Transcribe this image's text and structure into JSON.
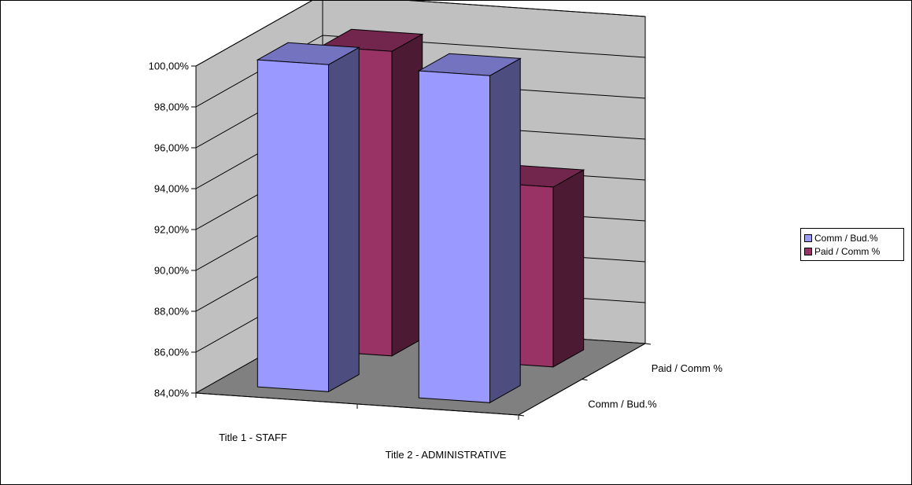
{
  "chart_data": {
    "type": "bar",
    "categories": [
      "Title  1 - STAFF",
      "Title 2 - ADMINISTRATIVE"
    ],
    "series": [
      {
        "name": "Comm / Bud.%",
        "values": [
          100.0,
          100.0
        ],
        "color": "#9999FF"
      },
      {
        "name": "Paid / Comm %",
        "values": [
          98.9,
          92.8
        ],
        "color": "#993366"
      }
    ],
    "depth_labels": [
      "Comm / Bud.%",
      "Paid / Comm %"
    ],
    "y_ticks": [
      "84,00%",
      "86,00%",
      "88,00%",
      "90,00%",
      "92,00%",
      "94,00%",
      "96,00%",
      "98,00%",
      "100,00%"
    ],
    "ylim": [
      84,
      100
    ],
    "grid": true,
    "legend_position": "right",
    "title": "",
    "xlabel": "",
    "ylabel": ""
  },
  "colors": {
    "back_wall": "#C0C0C0",
    "side_wall": "#C0C0C0",
    "floor": "#808080",
    "grid": "#000000"
  }
}
